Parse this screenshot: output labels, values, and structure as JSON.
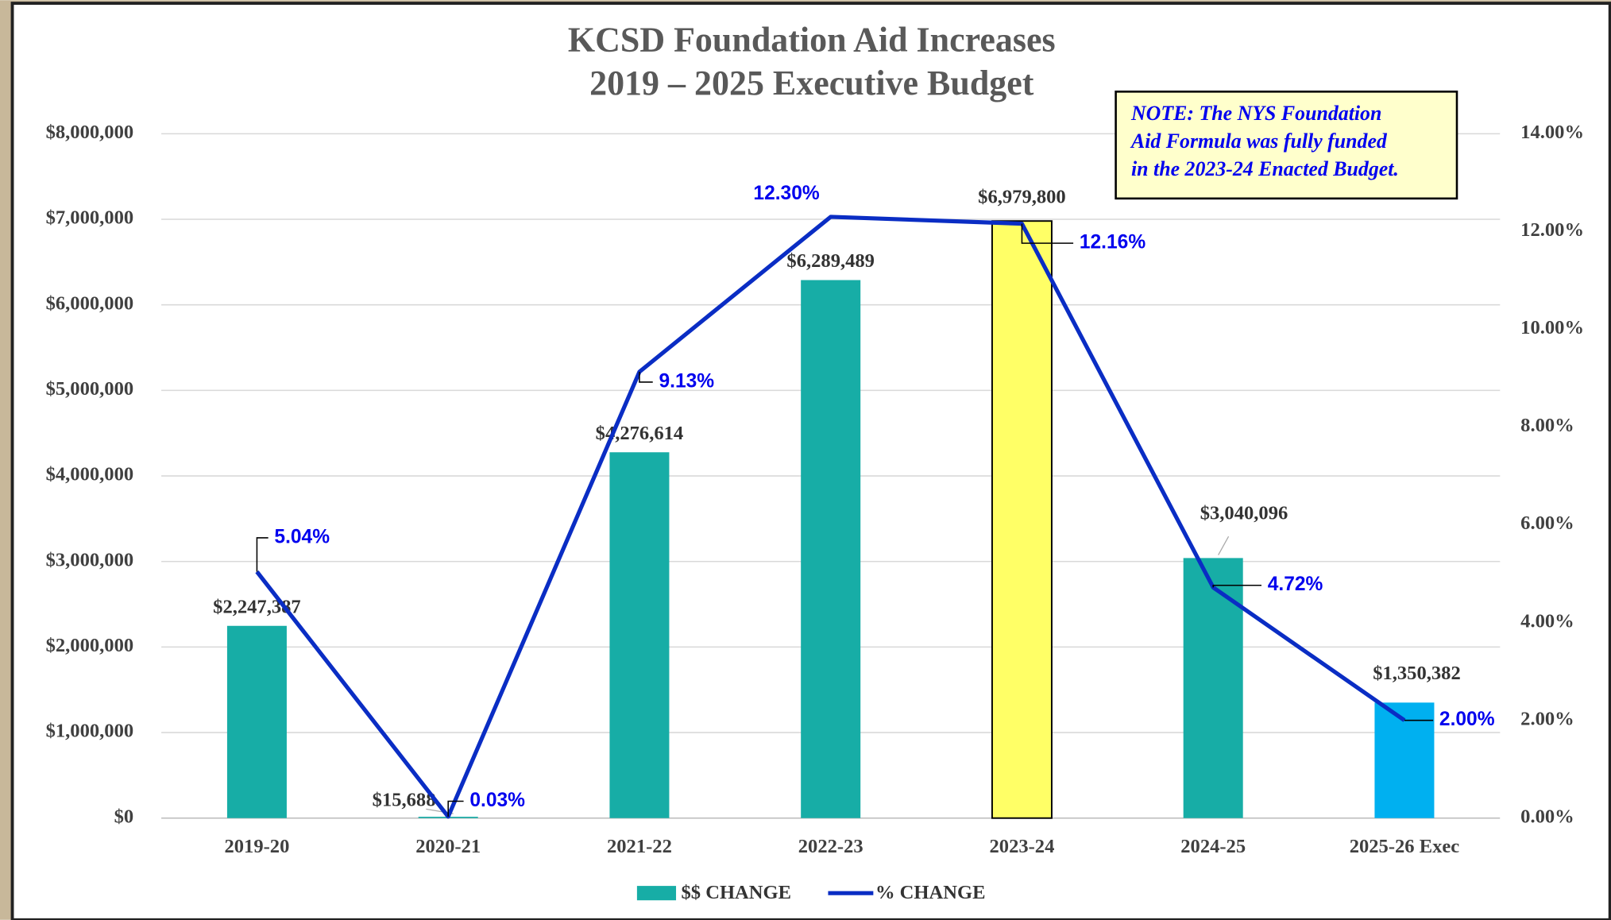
{
  "chart_data": {
    "type": "bar",
    "title": "KCSD Foundation Aid Increases",
    "subtitle": "2019 – 2025 Executive Budget",
    "note": [
      "NOTE: The NYS Foundation",
      "Aid Formula was fully funded",
      "in the 2023-24 Enacted Budget."
    ],
    "categories": [
      "2019-20",
      "2020-21",
      "2021-22",
      "2022-23",
      "2023-24",
      "2024-25",
      "2025-26 Exec"
    ],
    "series": [
      {
        "name": "$$ CHANGE",
        "color": "#17ada6",
        "type": "bar",
        "colors": [
          "#17ada6",
          "#17ada6",
          "#17ada6",
          "#17ada6",
          "#ffff66",
          "#17ada6",
          "#00b0f0"
        ],
        "values": [
          2247387,
          15688,
          4276614,
          6289489,
          6979800,
          3040096,
          1350382
        ],
        "value_labels": [
          "$2,247,387",
          "$15,688",
          "$4,276,614",
          "$6,289,489",
          "$6,979,800",
          "$3,040,096",
          "$1,350,382"
        ]
      },
      {
        "name": "% CHANGE",
        "color": "#0a2dc4",
        "type": "line",
        "axis": "y2",
        "values": [
          5.04,
          0.03,
          9.13,
          12.3,
          12.16,
          4.72,
          2.0
        ],
        "value_labels": [
          "5.04%",
          "0.03%",
          "9.13%",
          "12.30%",
          "12.16%",
          "4.72%",
          "2.00%"
        ]
      }
    ],
    "ylim": [
      0,
      8000000
    ],
    "yticks": [
      {
        "value": 0,
        "label": "$0"
      },
      {
        "value": 1000000,
        "label": "$1,000,000"
      },
      {
        "value": 2000000,
        "label": "$2,000,000"
      },
      {
        "value": 3000000,
        "label": "$3,000,000"
      },
      {
        "value": 4000000,
        "label": "$4,000,000"
      },
      {
        "value": 5000000,
        "label": "$5,000,000"
      },
      {
        "value": 6000000,
        "label": "$6,000,000"
      },
      {
        "value": 7000000,
        "label": "$7,000,000"
      },
      {
        "value": 8000000,
        "label": "$8,000,000"
      }
    ],
    "y2lim": [
      0,
      14
    ],
    "y2ticks": [
      {
        "value": 0,
        "label": "0.00%"
      },
      {
        "value": 2,
        "label": "2.00%"
      },
      {
        "value": 4,
        "label": "4.00%"
      },
      {
        "value": 6,
        "label": "6.00%"
      },
      {
        "value": 8,
        "label": "8.00%"
      },
      {
        "value": 10,
        "label": "10.00%"
      },
      {
        "value": 12,
        "label": "12.00%"
      },
      {
        "value": 14,
        "label": "14.00%"
      }
    ],
    "grid": true,
    "legend": "bottom"
  }
}
